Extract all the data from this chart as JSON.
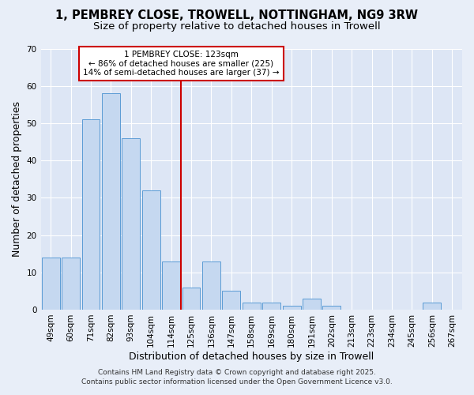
{
  "title": "1, PEMBREY CLOSE, TROWELL, NOTTINGHAM, NG9 3RW",
  "subtitle": "Size of property relative to detached houses in Trowell",
  "xlabel": "Distribution of detached houses by size in Trowell",
  "ylabel": "Number of detached properties",
  "categories": [
    "49sqm",
    "60sqm",
    "71sqm",
    "82sqm",
    "93sqm",
    "104sqm",
    "114sqm",
    "125sqm",
    "136sqm",
    "147sqm",
    "158sqm",
    "169sqm",
    "180sqm",
    "191sqm",
    "202sqm",
    "213sqm",
    "223sqm",
    "234sqm",
    "245sqm",
    "256sqm",
    "267sqm"
  ],
  "values": [
    14,
    14,
    51,
    58,
    46,
    32,
    13,
    6,
    13,
    5,
    2,
    2,
    1,
    3,
    1,
    0,
    0,
    0,
    0,
    2,
    0
  ],
  "bar_color": "#c5d8f0",
  "bar_edge_color": "#5b9bd5",
  "vline_x_index": 7,
  "vline_label": "1 PEMBREY CLOSE: 123sqm",
  "annotation_line1": "← 86% of detached houses are smaller (225)",
  "annotation_line2": "14% of semi-detached houses are larger (37) →",
  "box_edge_color": "#cc0000",
  "vline_color": "#cc0000",
  "background_color": "#e8eef8",
  "plot_bg_color": "#dde6f5",
  "ylim": [
    0,
    70
  ],
  "footer1": "Contains HM Land Registry data © Crown copyright and database right 2025.",
  "footer2": "Contains public sector information licensed under the Open Government Licence v3.0.",
  "title_fontsize": 10.5,
  "subtitle_fontsize": 9.5,
  "axis_label_fontsize": 9,
  "tick_fontsize": 7.5,
  "annotation_fontsize": 7.5,
  "footer_fontsize": 6.5
}
